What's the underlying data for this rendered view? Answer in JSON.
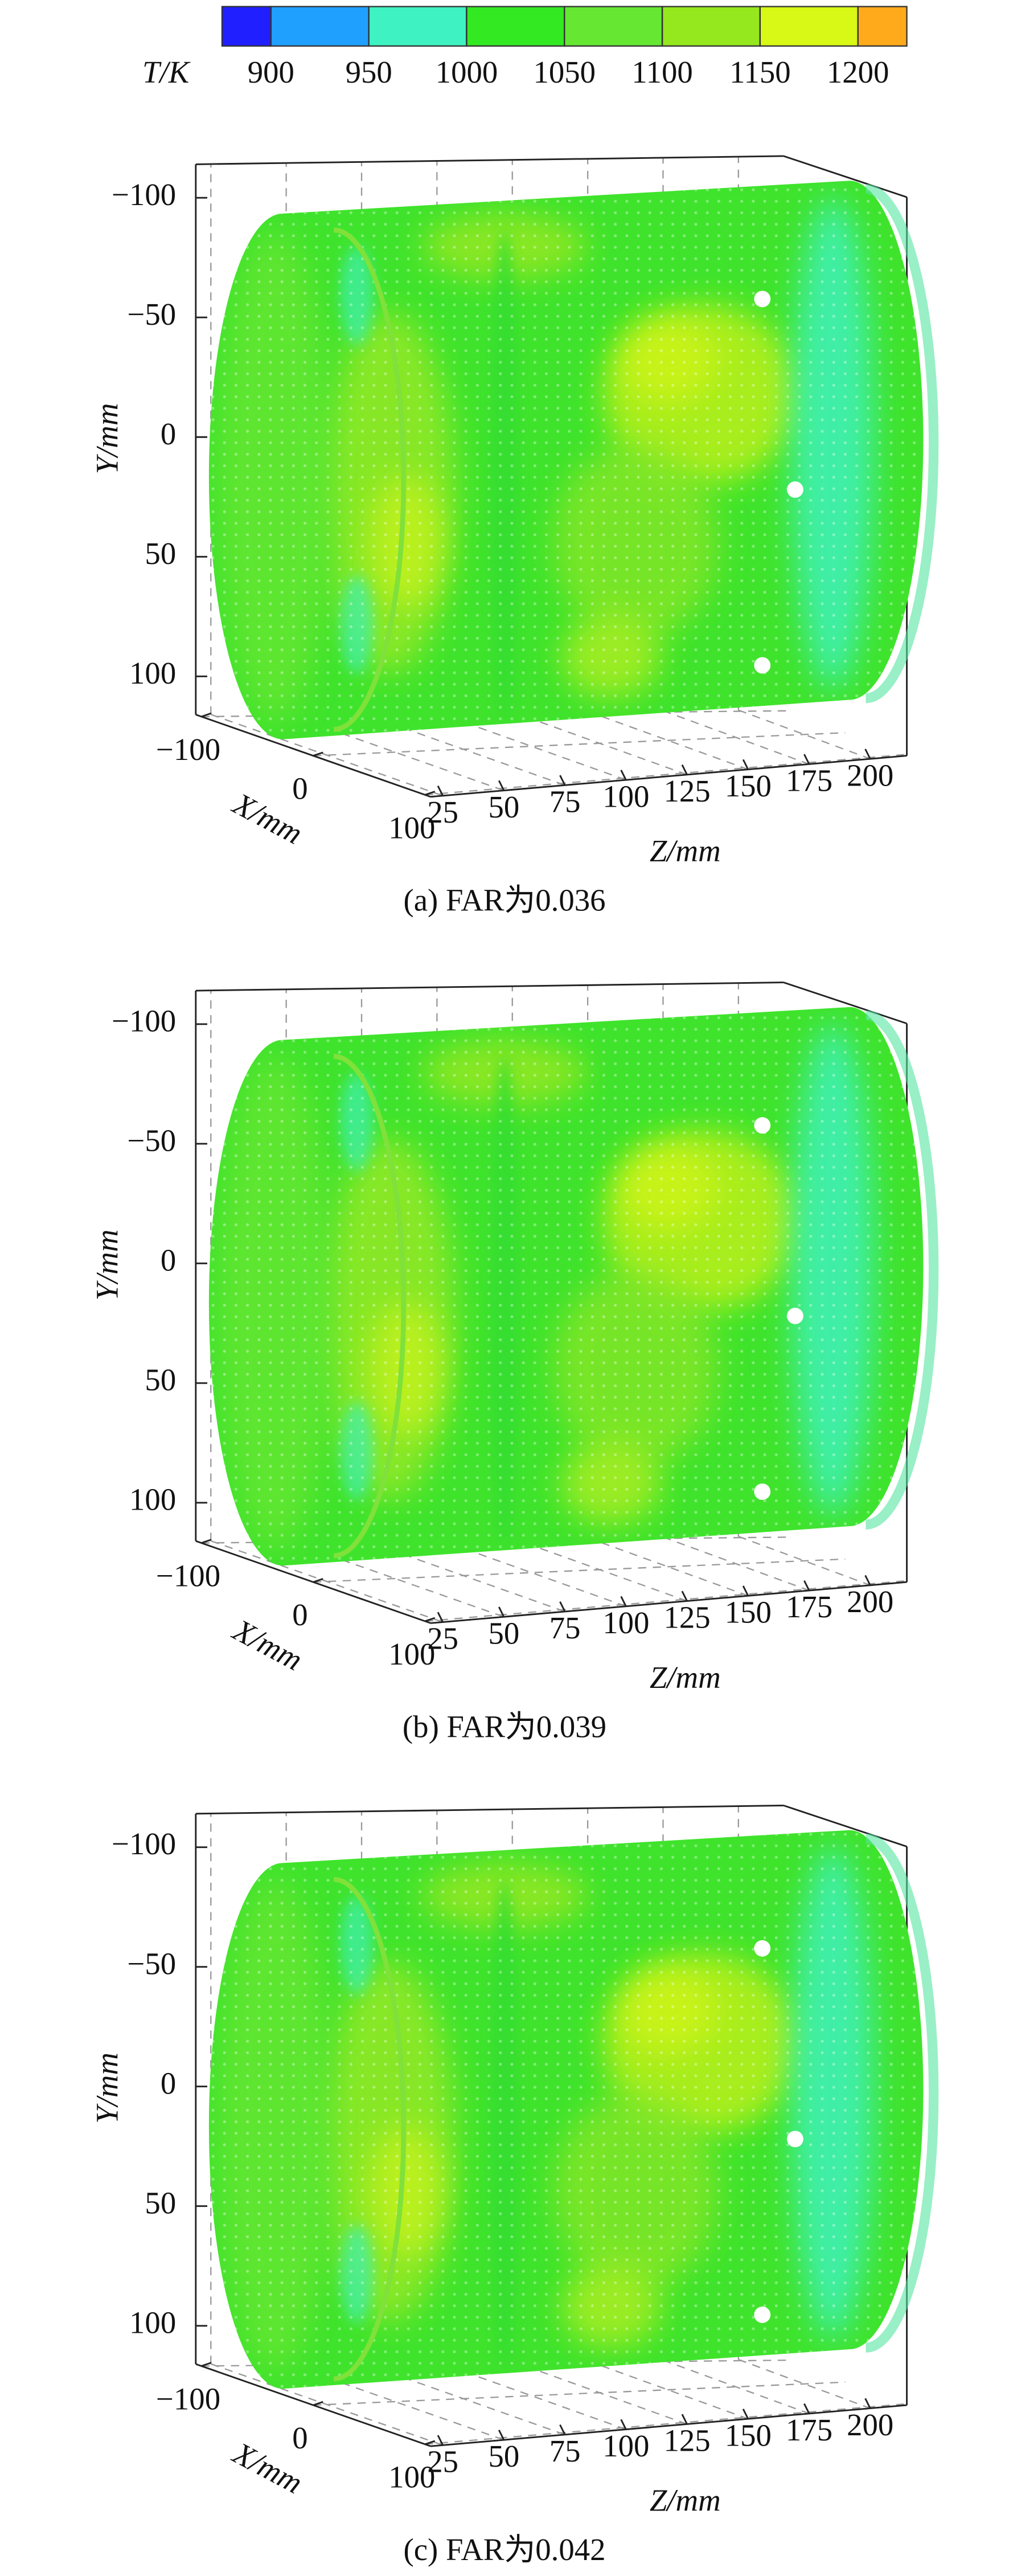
{
  "colorbar": {
    "label": "T/K",
    "lim": [
      875,
      1225
    ],
    "ticks": [
      900,
      950,
      1000,
      1050,
      1100,
      1150,
      1200
    ],
    "colors": [
      "#1f1fff",
      "#1fa0ff",
      "#3ff2c2",
      "#33ea22",
      "#66e833",
      "#95e81e",
      "#d8f815",
      "#ffaa1a"
    ]
  },
  "chart_data": [
    {
      "type": "surface3d",
      "caption": "(a) FAR为0.036",
      "xlabel": "X/mm",
      "ylabel": "Y/mm",
      "zlabel": "Z/mm",
      "xlim": [
        -105,
        105
      ],
      "xticks": [
        {
          "value": -100,
          "label": "−100"
        },
        0,
        100
      ],
      "ylim": [
        -114,
        116
      ],
      "yticks": [
        {
          "value": -100,
          "label": "−100"
        },
        {
          "value": -50,
          "label": "−50"
        },
        0,
        50,
        100
      ],
      "zlim": [
        20,
        215
      ],
      "zticks": [
        25,
        50,
        75,
        100,
        125,
        150,
        175,
        200
      ]
    },
    {
      "type": "surface3d",
      "caption": "(b) FAR为0.039",
      "xlabel": "X/mm",
      "ylabel": "Y/mm",
      "zlabel": "Z/mm",
      "xlim": [
        -105,
        105
      ],
      "xticks": [
        {
          "value": -100,
          "label": "−100"
        },
        0,
        100
      ],
      "ylim": [
        -114,
        116
      ],
      "yticks": [
        {
          "value": -100,
          "label": "−100"
        },
        {
          "value": -50,
          "label": "−50"
        },
        0,
        50,
        100
      ],
      "zlim": [
        20,
        215
      ],
      "zticks": [
        25,
        50,
        75,
        100,
        125,
        150,
        175,
        200
      ]
    },
    {
      "type": "surface3d",
      "caption": "(c) FAR为0.042",
      "xlabel": "X/mm",
      "ylabel": "Y/mm",
      "zlabel": "Z/mm",
      "xlim": [
        -105,
        105
      ],
      "xticks": [
        {
          "value": -100,
          "label": "−100"
        },
        0,
        100
      ],
      "ylim": [
        -114,
        116
      ],
      "yticks": [
        {
          "value": -100,
          "label": "−100"
        },
        {
          "value": -50,
          "label": "−50"
        },
        0,
        50,
        100
      ],
      "zlim": [
        20,
        215
      ],
      "zticks": [
        25,
        50,
        75,
        100,
        125,
        150,
        175,
        200
      ]
    }
  ]
}
